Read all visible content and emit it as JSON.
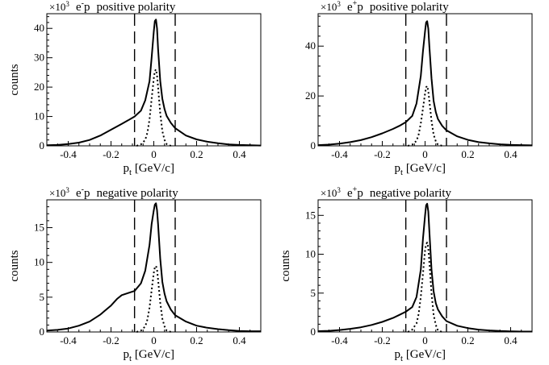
{
  "figure": {
    "xlabel_base": "p",
    "xlabel_sub": "t",
    "xlabel_unit": " [GeV/c]",
    "ylabel": "counts",
    "multiplier_base": "×10",
    "multiplier_exp": "3"
  },
  "chart_data": [
    {
      "type": "line",
      "title_particle": "e",
      "title_charge": "-",
      "title_target": "p",
      "title_text": "positive polarity",
      "xlabel": "p_t [GeV/c]",
      "ylabel": "counts",
      "y_multiplier": "×10^3",
      "xlim": [
        -0.5,
        0.5
      ],
      "ylim": [
        0,
        45
      ],
      "xticks": [
        -0.4,
        -0.2,
        0,
        0.2,
        0.4
      ],
      "xtick_labels": [
        "-0.4",
        "-0.2",
        "0",
        "0.2",
        "0.4"
      ],
      "yticks": [
        0,
        10,
        20,
        30,
        40
      ],
      "ytick_labels": [
        "0",
        "10",
        "20",
        "30",
        "40"
      ],
      "cut_lines": [
        -0.09,
        0.1
      ],
      "grid": false,
      "series": [
        {
          "style": "solid",
          "x": [
            -0.5,
            -0.45,
            -0.4,
            -0.35,
            -0.3,
            -0.25,
            -0.2,
            -0.15,
            -0.12,
            -0.09,
            -0.06,
            -0.04,
            -0.02,
            -0.01,
            0,
            0.005,
            0.01,
            0.015,
            0.02,
            0.03,
            0.04,
            0.05,
            0.06,
            0.08,
            0.1,
            0.15,
            0.2,
            0.25,
            0.3,
            0.35,
            0.4,
            0.45,
            0.5
          ],
          "y": [
            0.2,
            0.3,
            0.6,
            1.1,
            2.0,
            3.5,
            5.5,
            7.5,
            8.7,
            10.0,
            12.0,
            15.5,
            22.0,
            30.0,
            39.0,
            42.5,
            43.0,
            40.0,
            33.0,
            22.0,
            16.0,
            12.5,
            10.2,
            7.8,
            6.0,
            3.5,
            2.2,
            1.4,
            0.9,
            0.5,
            0.3,
            0.2,
            0.1
          ]
        },
        {
          "style": "dotted",
          "x": [
            -0.08,
            -0.06,
            -0.04,
            -0.03,
            -0.02,
            -0.01,
            0,
            0.005,
            0.01,
            0.015,
            0.02,
            0.03,
            0.04,
            0.05,
            0.06,
            0.08
          ],
          "y": [
            0,
            0.5,
            2.0,
            4.5,
            9.0,
            16.0,
            23.0,
            25.5,
            26.0,
            24.0,
            20.0,
            11.0,
            5.0,
            2.0,
            0.6,
            0
          ]
        }
      ]
    },
    {
      "type": "line",
      "title_particle": "e",
      "title_charge": "+",
      "title_target": "p",
      "title_text": "positive polarity",
      "xlabel": "p_t [GeV/c]",
      "ylabel": "",
      "y_multiplier": "×10^3",
      "xlim": [
        -0.5,
        0.5
      ],
      "ylim": [
        0,
        53
      ],
      "xticks": [
        -0.4,
        -0.2,
        0,
        0.2,
        0.4
      ],
      "xtick_labels": [
        "-0.4",
        "-0.2",
        "0",
        "0.2",
        "0.4"
      ],
      "yticks": [
        0,
        20,
        40
      ],
      "ytick_labels": [
        "0",
        "20",
        "40"
      ],
      "cut_lines": [
        -0.09,
        0.1
      ],
      "grid": false,
      "series": [
        {
          "style": "solid",
          "x": [
            -0.5,
            -0.45,
            -0.4,
            -0.35,
            -0.3,
            -0.25,
            -0.2,
            -0.15,
            -0.12,
            -0.09,
            -0.06,
            -0.04,
            -0.02,
            -0.01,
            0,
            0.005,
            0.01,
            0.015,
            0.02,
            0.03,
            0.04,
            0.05,
            0.06,
            0.08,
            0.1,
            0.15,
            0.2,
            0.25,
            0.3,
            0.35,
            0.4,
            0.45,
            0.5
          ],
          "y": [
            0.3,
            0.5,
            0.9,
            1.5,
            2.3,
            3.5,
            5.0,
            6.8,
            8.0,
            9.5,
            12.0,
            17.0,
            28.0,
            38.0,
            46.0,
            49.5,
            50.0,
            47.0,
            40.0,
            27.0,
            18.0,
            13.5,
            10.8,
            8.0,
            6.2,
            3.8,
            2.4,
            1.5,
            1.0,
            0.6,
            0.4,
            0.3,
            0.2
          ]
        },
        {
          "style": "dotted",
          "x": [
            -0.08,
            -0.06,
            -0.04,
            -0.03,
            -0.02,
            -0.01,
            0,
            0.005,
            0.01,
            0.015,
            0.02,
            0.03,
            0.04,
            0.05,
            0.06,
            0.08
          ],
          "y": [
            0,
            0.5,
            2.0,
            4.5,
            9.0,
            15.0,
            21.0,
            23.5,
            24.0,
            22.0,
            18.0,
            10.0,
            4.5,
            1.8,
            0.5,
            0
          ]
        }
      ]
    },
    {
      "type": "line",
      "title_particle": "e",
      "title_charge": "-",
      "title_target": "p",
      "title_text": "negative polarity",
      "xlabel": "p_t [GeV/c]",
      "ylabel": "counts",
      "y_multiplier": "×10^3",
      "xlim": [
        -0.5,
        0.5
      ],
      "ylim": [
        0,
        19
      ],
      "xticks": [
        -0.4,
        -0.2,
        0,
        0.2,
        0.4
      ],
      "xtick_labels": [
        "-0.4",
        "-0.2",
        "0",
        "0.2",
        "0.4"
      ],
      "yticks": [
        0,
        5,
        10,
        15
      ],
      "ytick_labels": [
        "0",
        "5",
        "10",
        "15"
      ],
      "cut_lines": [
        -0.09,
        0.1
      ],
      "grid": false,
      "series": [
        {
          "style": "solid",
          "x": [
            -0.5,
            -0.45,
            -0.4,
            -0.35,
            -0.3,
            -0.25,
            -0.2,
            -0.17,
            -0.15,
            -0.12,
            -0.09,
            -0.06,
            -0.04,
            -0.02,
            -0.01,
            0,
            0.005,
            0.01,
            0.015,
            0.02,
            0.03,
            0.04,
            0.05,
            0.06,
            0.08,
            0.1,
            0.15,
            0.2,
            0.25,
            0.3,
            0.35,
            0.4,
            0.45,
            0.5
          ],
          "y": [
            0.2,
            0.3,
            0.5,
            0.9,
            1.5,
            2.5,
            3.8,
            4.8,
            5.3,
            5.6,
            5.9,
            7.0,
            8.8,
            12.5,
            15.5,
            17.5,
            18.3,
            18.5,
            17.5,
            15.5,
            10.5,
            7.2,
            5.5,
            4.4,
            3.2,
            2.4,
            1.5,
            0.9,
            0.6,
            0.4,
            0.25,
            0.15,
            0.1,
            0.1
          ]
        },
        {
          "style": "dotted",
          "x": [
            -0.08,
            -0.06,
            -0.04,
            -0.03,
            -0.02,
            -0.01,
            0,
            0.005,
            0.01,
            0.015,
            0.02,
            0.03,
            0.04,
            0.05,
            0.06,
            0.08
          ],
          "y": [
            0,
            0.2,
            0.8,
            1.8,
            3.5,
            6.0,
            8.5,
            9.3,
            9.5,
            9.0,
            7.5,
            4.2,
            1.9,
            0.8,
            0.2,
            0
          ]
        }
      ]
    },
    {
      "type": "line",
      "title_particle": "e",
      "title_charge": "+",
      "title_target": "p",
      "title_text": "negative polarity",
      "xlabel": "p_t [GeV/c]",
      "ylabel": "counts",
      "y_multiplier": "×10^3",
      "xlim": [
        -0.5,
        0.5
      ],
      "ylim": [
        0,
        17
      ],
      "xticks": [
        -0.4,
        -0.2,
        0,
        0.2,
        0.4
      ],
      "xtick_labels": [
        "-0.4",
        "-0.2",
        "0",
        "0.2",
        "0.4"
      ],
      "yticks": [
        0,
        5,
        10,
        15
      ],
      "ytick_labels": [
        "0",
        "5",
        "10",
        "15"
      ],
      "cut_lines": [
        -0.09,
        0.1
      ],
      "grid": false,
      "series": [
        {
          "style": "solid",
          "x": [
            -0.5,
            -0.45,
            -0.4,
            -0.35,
            -0.3,
            -0.25,
            -0.2,
            -0.15,
            -0.12,
            -0.09,
            -0.06,
            -0.04,
            -0.02,
            -0.01,
            0,
            0.005,
            0.01,
            0.015,
            0.02,
            0.03,
            0.04,
            0.05,
            0.06,
            0.08,
            0.1,
            0.15,
            0.2,
            0.25,
            0.3,
            0.35,
            0.4,
            0.45,
            0.5
          ],
          "y": [
            0.1,
            0.15,
            0.25,
            0.4,
            0.6,
            0.9,
            1.3,
            1.8,
            2.2,
            2.6,
            3.2,
            4.5,
            8.0,
            12.0,
            15.0,
            16.3,
            16.5,
            15.5,
            13.0,
            8.0,
            5.2,
            3.7,
            2.9,
            2.0,
            1.4,
            0.8,
            0.5,
            0.3,
            0.2,
            0.12,
            0.08,
            0.05,
            0.05
          ]
        },
        {
          "style": "dotted",
          "x": [
            -0.08,
            -0.06,
            -0.04,
            -0.03,
            -0.02,
            -0.01,
            0,
            0.005,
            0.01,
            0.015,
            0.02,
            0.03,
            0.04,
            0.05,
            0.06,
            0.08
          ],
          "y": [
            0,
            0.3,
            1.1,
            2.3,
            4.5,
            7.5,
            10.5,
            11.3,
            11.5,
            10.8,
            9.0,
            5.0,
            2.2,
            0.9,
            0.2,
            0
          ]
        }
      ]
    }
  ]
}
